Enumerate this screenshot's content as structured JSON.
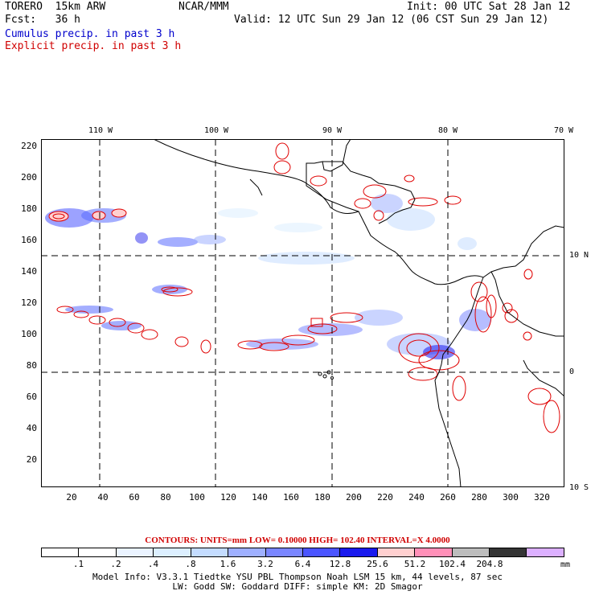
{
  "header": {
    "model": "TORERO  15km ARW",
    "org": "NCAR/MMM",
    "init": "Init: 00 UTC Sat 28 Jan 12",
    "fcst": "Fcst:   36 h",
    "valid": "Valid: 12 UTC Sun 29 Jan 12 (06 CST Sun 29 Jan 12)",
    "field1": "Cumulus precip. in past 3 h",
    "field2": "Explicit precip. in past 3 h"
  },
  "colors": {
    "field1": "#0000cc",
    "field2": "#d00000",
    "coast": "#000000",
    "grid": "#000000"
  },
  "map": {
    "x_ticks": [
      "20",
      "40",
      "60",
      "80",
      "100",
      "120",
      "140",
      "160",
      "180",
      "200",
      "220",
      "240",
      "260",
      "280",
      "300",
      "320"
    ],
    "y_ticks": [
      "220",
      "200",
      "180",
      "160",
      "140",
      "120",
      "100",
      "80",
      "60",
      "40",
      "20"
    ],
    "lon_labels": [
      "110 W",
      "100 W",
      "90 W",
      "80 W",
      "70 W"
    ],
    "lat_labels": [
      "10 N",
      "0",
      "10 S"
    ]
  },
  "contour_info": "CONTOURS:  UNITS=mm  LOW= 0.10000       HIGH=  102.40     INTERVAL=X  4.0000",
  "colorbar": {
    "labels": [
      ".1",
      ".2",
      ".4",
      ".8",
      "1.6",
      "3.2",
      "6.4",
      "12.8",
      "25.6",
      "51.2",
      "102.4",
      "204.8"
    ],
    "colors": [
      "#ffffff",
      "#ffffff",
      "#eaf3ff",
      "#dcefff",
      "#c4dcff",
      "#9fb0ff",
      "#7a86ff",
      "#4b55ff",
      "#1a1aee",
      "#ffd0d0",
      "#ff90b8",
      "#bdbdbd",
      "#343434",
      "#dcb0ff"
    ],
    "units": "mm"
  },
  "model_info": {
    "line1": "Model Info: V3.3.1   Tiedtke YSU PBL  Thompson    Noah LSM  15 km,   44 levels,   87 sec",
    "line2": "LW: Godd SW: Goddard DIFF: simple KM: 2D Smagor"
  }
}
